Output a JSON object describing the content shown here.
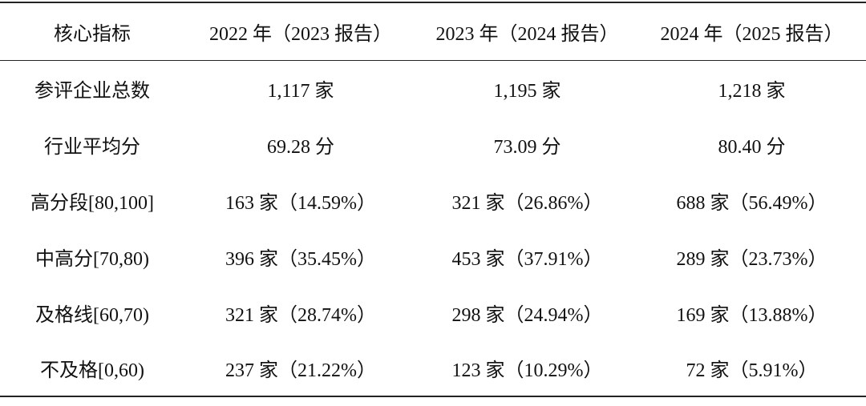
{
  "table": {
    "header": [
      "核心指标",
      "2022 年（2023 报告）",
      "2023 年（2024 报告）",
      "2024 年（2025 报告）"
    ],
    "rows": [
      [
        "参评企业总数",
        "1,117 家",
        "1,195 家",
        "1,218 家"
      ],
      [
        "行业平均分",
        "69.28 分",
        "73.09 分",
        "80.40 分"
      ],
      [
        "高分段[80,100]",
        "163 家（14.59%）",
        "321 家（26.86%）",
        "688 家（56.49%）"
      ],
      [
        "中高分[70,80)",
        "396 家（35.45%）",
        "453 家（37.91%）",
        "289 家（23.73%）"
      ],
      [
        "及格线[60,70)",
        "321 家（28.74%）",
        "298 家（24.94%）",
        "169 家（13.88%）"
      ],
      [
        "不及格[0,60)",
        "237 家（21.22%）",
        "123 家（10.29%）",
        "72 家（5.91%）"
      ]
    ]
  }
}
